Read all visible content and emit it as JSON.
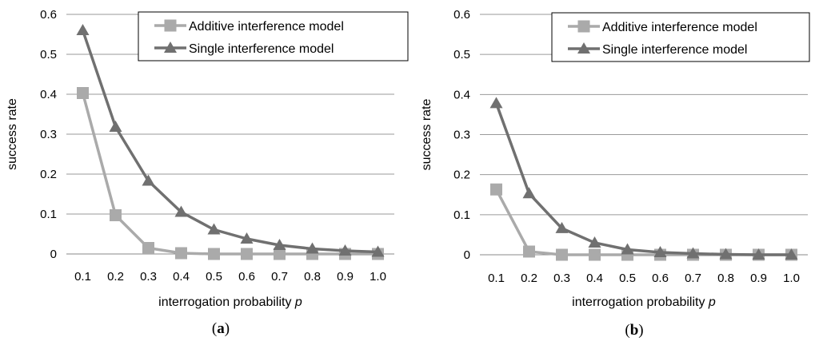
{
  "chart_data": [
    {
      "type": "line",
      "caption_letter": "a",
      "xlabel": "interrogation probability",
      "xlabel_var": "p",
      "ylabel": "success rate",
      "x": [
        "0.1",
        "0.2",
        "0.3",
        "0.4",
        "0.5",
        "0.6",
        "0.7",
        "0.8",
        "0.9",
        "1.0"
      ],
      "yticks": [
        "0",
        "0.1",
        "0.2",
        "0.3",
        "0.4",
        "0.5",
        "0.6"
      ],
      "ylim": [
        0,
        0.6
      ],
      "grid": true,
      "legend_position": "top-right",
      "series": [
        {
          "name": "Additive interference model",
          "marker": "square",
          "color": "#aaaaaa",
          "values": [
            0.403,
            0.097,
            0.015,
            0.002,
            0.0,
            0.0,
            0.0,
            0.0,
            0.0,
            0.0
          ]
        },
        {
          "name": "Single interference model",
          "marker": "triangle",
          "color": "#707070",
          "values": [
            0.56,
            0.318,
            0.183,
            0.105,
            0.061,
            0.038,
            0.022,
            0.013,
            0.008,
            0.005
          ]
        }
      ]
    },
    {
      "type": "line",
      "caption_letter": "b",
      "xlabel": "interrogation probability",
      "xlabel_var": "p",
      "ylabel": "success rate",
      "x": [
        "0.1",
        "0.2",
        "0.3",
        "0.4",
        "0.5",
        "0.6",
        "0.7",
        "0.8",
        "0.9",
        "1.0"
      ],
      "yticks": [
        "0",
        "0.1",
        "0.2",
        "0.3",
        "0.4",
        "0.5",
        "0.6"
      ],
      "ylim": [
        0,
        0.6
      ],
      "grid": true,
      "legend_position": "top-right",
      "series": [
        {
          "name": "Additive interference model",
          "marker": "square",
          "color": "#aaaaaa",
          "values": [
            0.163,
            0.008,
            0.0,
            0.0,
            0.0,
            0.0,
            0.0,
            0.0,
            0.0,
            0.0
          ]
        },
        {
          "name": "Single interference model",
          "marker": "triangle",
          "color": "#707070",
          "values": [
            0.378,
            0.153,
            0.066,
            0.03,
            0.013,
            0.006,
            0.003,
            0.001,
            0.0,
            0.0
          ]
        }
      ]
    }
  ]
}
